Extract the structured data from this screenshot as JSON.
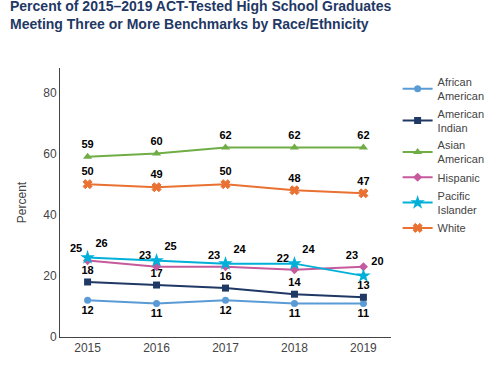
{
  "chart_data": {
    "type": "line",
    "title": "Percent of 2015–2019 ACT-Tested High School Graduates",
    "subtitle": "Meeting Three or More Benchmarks by Race/Ethnicity",
    "ylabel": "Percent",
    "x": [
      2015,
      2016,
      2017,
      2018,
      2019
    ],
    "xlim": [
      2014.6,
      2019.4
    ],
    "xticks": [
      2015,
      2016,
      2017,
      2018,
      2019
    ],
    "ylim": [
      0,
      88
    ],
    "yticks": [
      0,
      20,
      40,
      60,
      80
    ],
    "grid": false,
    "legend": "right",
    "data_labels": true,
    "title_color": "#1F3864",
    "series": [
      {
        "name": "African\nAmerican",
        "values": [
          12,
          11,
          12,
          11,
          11
        ],
        "color": "#5B9BD5",
        "marker": "circle"
      },
      {
        "name": "American\nIndian",
        "values": [
          18,
          17,
          16,
          14,
          13
        ],
        "color": "#1F3864",
        "marker": "square"
      },
      {
        "name": "Asian\nAmerican",
        "values": [
          59,
          60,
          62,
          62,
          62
        ],
        "color": "#70AD47",
        "marker": "triangle"
      },
      {
        "name": "Hispanic",
        "values": [
          25,
          23,
          23,
          22,
          23
        ],
        "color": "#C55A9D",
        "marker": "diamond"
      },
      {
        "name": "Pacific\nIslander",
        "values": [
          26,
          25,
          24,
          24,
          20
        ],
        "color": "#00B0D9",
        "marker": "star"
      },
      {
        "name": "White",
        "values": [
          50,
          49,
          50,
          48,
          47
        ],
        "color": "#E97132",
        "marker": "x"
      }
    ]
  }
}
